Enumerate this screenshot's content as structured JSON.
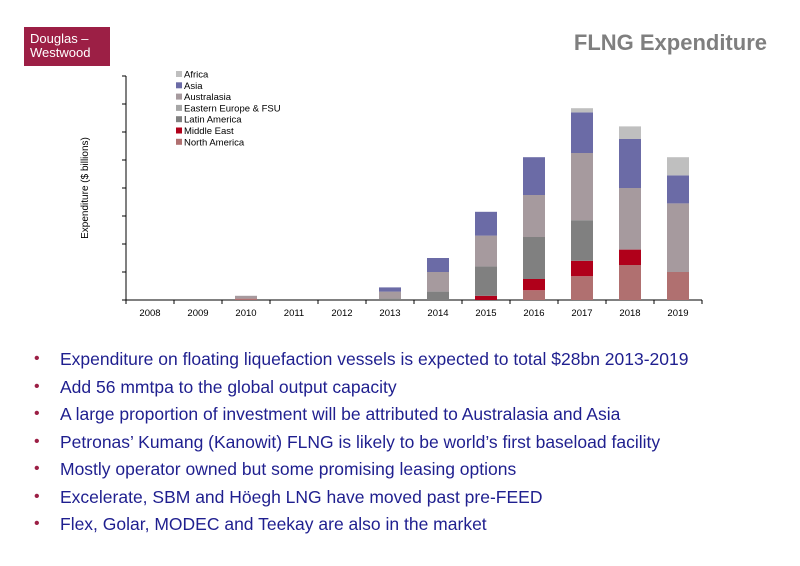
{
  "logo": {
    "line1": "Douglas –",
    "line2": "Westwood"
  },
  "slide_title": "FLNG Expenditure",
  "chart_data": {
    "type": "bar",
    "stacked": true,
    "title": "",
    "xlabel": "",
    "ylabel": "Expenditure ($ billions)",
    "ylim": [
      0,
      8
    ],
    "y_ticks_labeled": false,
    "grid": false,
    "legend_position": "top-left",
    "categories": [
      "2008",
      "2009",
      "2010",
      "2011",
      "2012",
      "2013",
      "2014",
      "2015",
      "2016",
      "2017",
      "2018",
      "2019"
    ],
    "series": [
      {
        "name": "North America",
        "color": "#b07070",
        "values": [
          0,
          0,
          0.05,
          0,
          0,
          0,
          0,
          0,
          0.35,
          0.85,
          1.25,
          1.0
        ]
      },
      {
        "name": "Middle East",
        "color": "#b0001a",
        "values": [
          0,
          0,
          0,
          0,
          0,
          0,
          0,
          0.15,
          0.4,
          0.55,
          0.55,
          0
        ]
      },
      {
        "name": "Latin America",
        "color": "#808080",
        "values": [
          0,
          0,
          0,
          0,
          0,
          0.05,
          0.3,
          1.05,
          1.5,
          1.45,
          0,
          0
        ]
      },
      {
        "name": "Eastern Europe & FSU",
        "color": "#a6a6a6",
        "values": [
          0,
          0,
          0,
          0,
          0,
          0,
          0,
          0,
          0,
          0,
          0,
          0
        ]
      },
      {
        "name": "Australasia",
        "color": "#a69a9e",
        "values": [
          0,
          0,
          0.1,
          0,
          0,
          0.25,
          0.7,
          1.1,
          1.5,
          2.4,
          2.2,
          2.45
        ]
      },
      {
        "name": "Asia",
        "color": "#6b6ba6",
        "values": [
          0,
          0,
          0,
          0,
          0,
          0.15,
          0.5,
          0.85,
          1.35,
          1.45,
          1.75,
          1.0
        ]
      },
      {
        "name": "Africa",
        "color": "#bfbfbf",
        "values": [
          0,
          0,
          0,
          0,
          0,
          0,
          0,
          0,
          0,
          0.15,
          0.45,
          0.65
        ]
      }
    ],
    "legend_order": [
      "Africa",
      "Asia",
      "Australasia",
      "Eastern Europe & FSU",
      "Latin America",
      "Middle East",
      "North America"
    ]
  },
  "bullets": [
    "Expenditure on floating liquefaction vessels is expected to total $28bn 2013-2019",
    "Add 56 mmtpa to the global output capacity",
    "A large proportion of investment will be attributed to Australasia and Asia",
    "Petronas’ Kumang (Kanowit) FLNG is likely to be world’s first baseload facility",
    "Mostly operator owned but some promising leasing options",
    "Excelerate, SBM and Höegh LNG have moved past pre-FEED",
    "Flex, Golar, MODEC and Teekay are also in the market"
  ]
}
